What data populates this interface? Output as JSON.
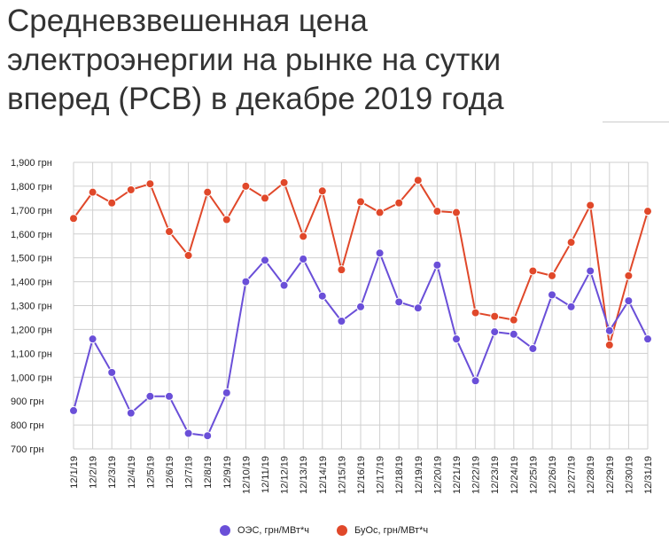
{
  "chart_data": {
    "type": "line",
    "title": "Средневзвешенная цена электроэнергии на рынке на сутки вперед (РСВ) в декабре 2019 года",
    "xlabel": "",
    "ylabel": "",
    "ylim": [
      700,
      1900
    ],
    "y_ticks": [
      {
        "value": 1900,
        "label": "1,900 грн"
      },
      {
        "value": 1800,
        "label": "1,800 грн"
      },
      {
        "value": 1700,
        "label": "1,700 грн"
      },
      {
        "value": 1600,
        "label": "1,600 грн"
      },
      {
        "value": 1500,
        "label": "1,500 грн"
      },
      {
        "value": 1400,
        "label": "1,400 грн"
      },
      {
        "value": 1300,
        "label": "1,300 грн"
      },
      {
        "value": 1200,
        "label": "1,200 грн"
      },
      {
        "value": 1100,
        "label": "1,100 грн"
      },
      {
        "value": 1000,
        "label": "1,000 грн"
      },
      {
        "value": 900,
        "label": "900 грн"
      },
      {
        "value": 800,
        "label": "800 грн"
      },
      {
        "value": 700,
        "label": "700 грн"
      }
    ],
    "categories": [
      "12/1/19",
      "12/2/19",
      "12/3/19",
      "12/4/19",
      "12/5/19",
      "12/6/19",
      "12/7/19",
      "12/8/19",
      "12/9/19",
      "12/10/19",
      "12/11/19",
      "12/12/19",
      "12/13/19",
      "12/14/19",
      "12/15/19",
      "12/16/19",
      "12/17/19",
      "12/18/19",
      "12/19/19",
      "12/20/19",
      "12/21/19",
      "12/22/19",
      "12/23/19",
      "12/24/19",
      "12/25/19",
      "12/26/19",
      "12/27/19",
      "12/28/19",
      "12/29/19",
      "12/30/19",
      "12/31/19"
    ],
    "grid": true,
    "legend_position": "bottom",
    "series": [
      {
        "name": "ОЭС, грн/МВт*ч",
        "color": "#6a4fd8",
        "values": [
          860,
          1160,
          1020,
          850,
          920,
          920,
          765,
          755,
          935,
          1400,
          1490,
          1385,
          1495,
          1340,
          1235,
          1295,
          1520,
          1315,
          1290,
          1470,
          1160,
          985,
          1190,
          1180,
          1120,
          1345,
          1295,
          1445,
          1195,
          1320,
          1160
        ]
      },
      {
        "name": "БуОс, грн/МВт*ч",
        "color": "#e0482a",
        "values": [
          1665,
          1775,
          1730,
          1785,
          1810,
          1610,
          1510,
          1775,
          1660,
          1800,
          1750,
          1815,
          1590,
          1780,
          1450,
          1735,
          1690,
          1730,
          1825,
          1695,
          1690,
          1270,
          1255,
          1240,
          1445,
          1425,
          1565,
          1720,
          1135,
          1425,
          1695
        ]
      }
    ]
  }
}
